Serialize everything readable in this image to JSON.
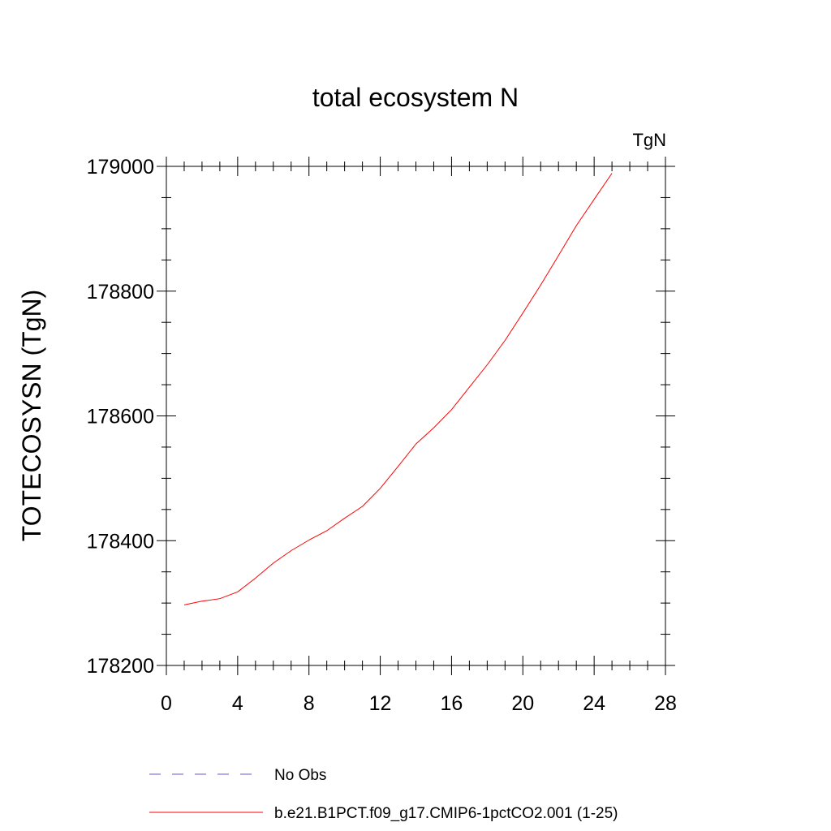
{
  "chart_data": {
    "type": "line",
    "title": "total ecosystem N",
    "units_label": "TgN",
    "xlabel": "",
    "ylabel": "TOTECOSYSN  (TgN)",
    "xlim": [
      0,
      28
    ],
    "ylim": [
      178200,
      179000
    ],
    "x_major_ticks": [
      0,
      4,
      8,
      12,
      16,
      20,
      24,
      28
    ],
    "x_minor_step": 1,
    "y_major_ticks": [
      178200,
      178400,
      178600,
      178800,
      179000
    ],
    "y_minor_step": 50,
    "grid": false,
    "legend_placement": "bottom",
    "x_tick_labels": [
      "0",
      "4",
      "8",
      "12",
      "16",
      "20",
      "24",
      "28"
    ],
    "y_tick_labels": [
      "178200",
      "178400",
      "178600",
      "178800",
      "179000"
    ],
    "legend": [
      {
        "label": "No Obs",
        "color": "#6a5acd",
        "dash": "dashed"
      },
      {
        "label": "b.e21.B1PCT.f09_g17.CMIP6-1pctCO2.001 (1-25)",
        "color": "#ff0000",
        "dash": "solid"
      }
    ],
    "series": [
      {
        "color": "#ff0000",
        "x": [
          1,
          2,
          3,
          4,
          5,
          6,
          7,
          8,
          9,
          10,
          11,
          12,
          13,
          14,
          15,
          16,
          17,
          18,
          19,
          20,
          21,
          22,
          23,
          24,
          25
        ],
        "y": [
          178297,
          178303,
          178307,
          178318,
          178340,
          178364,
          178384,
          178401,
          178416,
          178436,
          178455,
          178484,
          178519,
          178555,
          178581,
          178610,
          178646,
          178682,
          178721,
          178765,
          178810,
          178857,
          178905,
          178947,
          178989
        ]
      }
    ]
  }
}
